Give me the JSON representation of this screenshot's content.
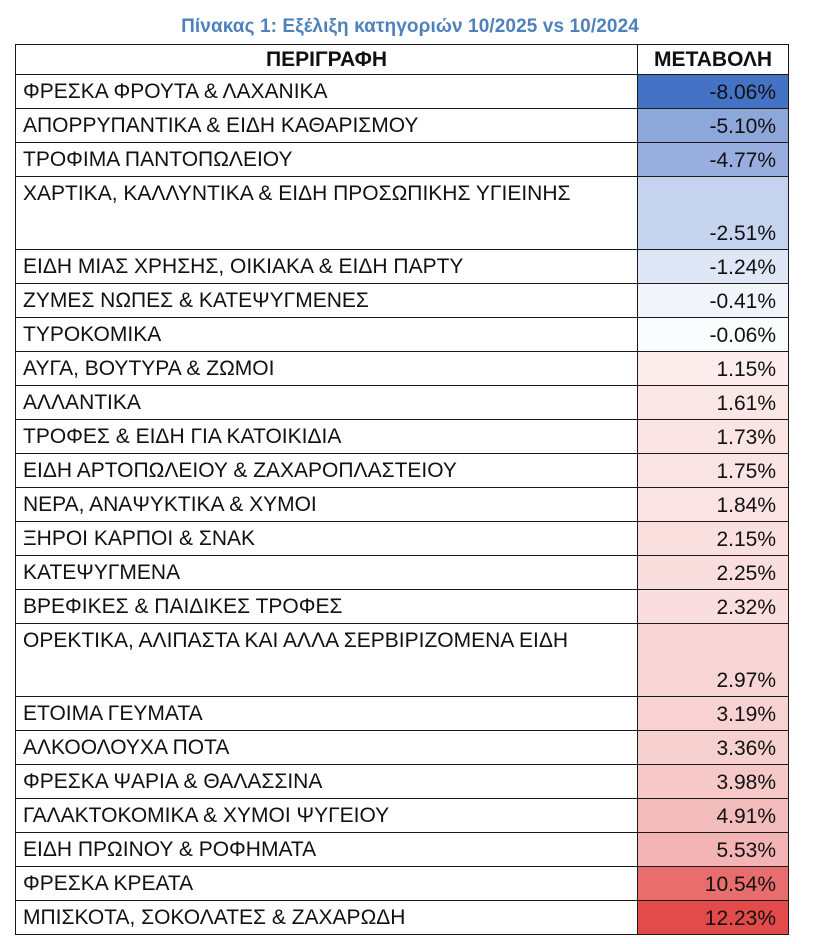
{
  "caption": "Πίνακας 1: Εξέλιξη κατηγοριών 10/2025 vs 10/2024",
  "columns": [
    "ΠΕΡΙΓΡΑΦΗ",
    "ΜΕΤΑΒΟΛΗ"
  ],
  "rows": [
    {
      "label": "ΦΡΕΣΚΑ ΦΡΟΥΤΑ & ΛΑΧΑΝΙΚΑ",
      "value": "-8.06%",
      "color": "#4472c4"
    },
    {
      "label": "ΑΠΟΡΡΥΠΑΝΤΙΚΑ & ΕΙΔΗ ΚΑΘΑΡΙΣΜΟΥ",
      "value": "-5.10%",
      "color": "#8ea7db"
    },
    {
      "label": "ΤΡΟΦΙΜΑ ΠΑΝΤΟΠΩΛΕΙΟΥ",
      "value": "-4.77%",
      "color": "#97aedf"
    },
    {
      "label": "ΧΑΡΤΙΚΑ, ΚΑΛΛΥΝΤΙΚΑ & ΕΙΔΗ ΠΡΟΣΩΠΙΚΗΣ ΥΓΙΕΙΝΗΣ",
      "value": "-2.51%",
      "color": "#c5d3ef",
      "tall": true
    },
    {
      "label": "ΕΙΔΗ ΜΙΑΣ ΧΡΗΣΗΣ, ΟΙΚΙΑΚΑ & ΕΙΔΗ ΠΑΡΤΥ",
      "value": "-1.24%",
      "color": "#dfe7f6"
    },
    {
      "label": "ΖΥΜΕΣ ΝΩΠΕΣ & ΚΑΤΕΨΥΓΜΕΝΕΣ",
      "value": "-0.41%",
      "color": "#f1f4fb"
    },
    {
      "label": "ΤΥΡΟΚΟΜΙΚΑ",
      "value": "-0.06%",
      "color": "#fbfcfe"
    },
    {
      "label": "ΑΥΓΑ, ΒΟΥΤΥΡΑ & ΖΩΜΟΙ",
      "value": "1.15%",
      "color": "#fcecec"
    },
    {
      "label": "ΑΛΛΑΝΤΙΚΑ",
      "value": "1.61%",
      "color": "#fbe6e6"
    },
    {
      "label": "ΤΡΟΦΕΣ & ΕΙΔΗ ΓΙΑ ΚΑΤΟΙΚΙΔΙΑ",
      "value": "1.73%",
      "color": "#fbe4e4"
    },
    {
      "label": "ΕΙΔΗ ΑΡΤΟΠΩΛΕΙΟΥ & ΖΑΧΑΡΟΠΛΑΣΤΕΙΟΥ",
      "value": "1.75%",
      "color": "#fbe4e4"
    },
    {
      "label": "ΝΕΡΑ, ΑΝΑΨΥΚΤΙΚΑ & ΧΥΜΟΙ",
      "value": "1.84%",
      "color": "#fbe3e3"
    },
    {
      "label": "ΞΗΡΟΙ ΚΑΡΠΟΙ & ΣΝΑΚ",
      "value": "2.15%",
      "color": "#fadfdf"
    },
    {
      "label": "ΚΑΤΕΨΥΓΜΕΝΑ",
      "value": "2.25%",
      "color": "#fadede"
    },
    {
      "label": "ΒΡΕΦΙΚΕΣ & ΠΑΙΔΙΚΕΣ ΤΡΟΦΕΣ",
      "value": "2.32%",
      "color": "#faddde"
    },
    {
      "label": "ΟΡΕΚΤΙΚΑ, ΑΛΙΠΑΣΤΑ ΚΑΙ ΑΛΛΑ ΣΕΡΒΙΡΙΖΟΜΕΝΑ ΕΙΔΗ",
      "value": "2.97%",
      "color": "#f8d5d5",
      "tall": true
    },
    {
      "label": "ΕΤΟΙΜΑ ΓΕΥΜΑΤΑ",
      "value": "3.19%",
      "color": "#f8d2d2"
    },
    {
      "label": "ΑΛΚΟΟΛΟΥΧΑ ΠΟΤΑ",
      "value": "3.36%",
      "color": "#f7d0d0"
    },
    {
      "label": "ΦΡΕΣΚΑ ΨΑΡΙΑ & ΘΑΛΑΣΣΙΝΑ",
      "value": "3.98%",
      "color": "#f6c8c8"
    },
    {
      "label": "ΓΑΛΑΚΤΟΚΟΜΙΚΑ & ΧΥΜΟΙ ΨΥΓΕΙΟΥ",
      "value": "4.91%",
      "color": "#f3bcbc"
    },
    {
      "label": "ΕΙΔΗ ΠΡΩΙΝΟΥ & ΡΟΦΗΜΑΤΑ",
      "value": "5.53%",
      "color": "#f2b4b4"
    },
    {
      "label": "ΦΡΕΣΚΑ ΚΡΕΑΤΑ",
      "value": "10.54%",
      "color": "#e86d6d"
    },
    {
      "label": "ΜΠΙΣΚΟΤΑ, ΣΟΚΟΛΑΤΕΣ & ΖΑΧΑΡΩΔΗ",
      "value": "12.23%",
      "color": "#e34a4a"
    }
  ]
}
